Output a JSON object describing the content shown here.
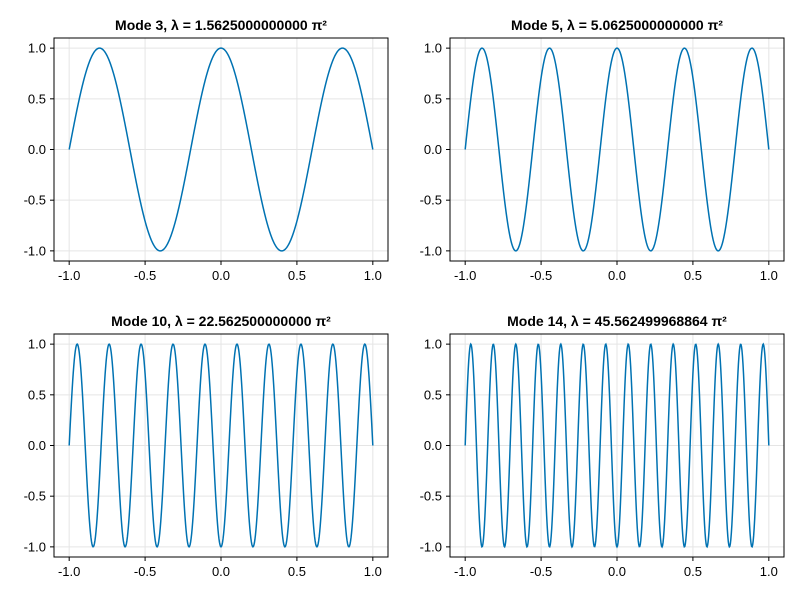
{
  "colors": {
    "line": "#0072b2",
    "grid": "#e5e5e5",
    "frame": "#000000",
    "background": "#ffffff"
  },
  "chart_data": [
    {
      "type": "line",
      "title": "Mode 3, λ = 1.5625000000000 π²",
      "function": "sin(2.5π(x+1))",
      "x_range": [
        -1.0,
        1.0
      ],
      "xlim": [
        -1.1,
        1.1
      ],
      "ylim": [
        -1.1,
        1.1
      ],
      "xticks": [
        "-1.0",
        "-0.5",
        "0.0",
        "0.5",
        "1.0"
      ],
      "yticks": [
        "-1.0",
        "-0.5",
        "0.0",
        "0.5",
        "1.0"
      ],
      "xtick_values": [
        -1.0,
        -0.5,
        0.0,
        0.5,
        1.0
      ],
      "ytick_values": [
        -1.0,
        -0.5,
        0.0,
        0.5,
        1.0
      ],
      "grid": true,
      "wave_number": 2.5
    },
    {
      "type": "line",
      "title": "Mode 5, λ = 5.0625000000000 π²",
      "function": "sin(4.5π(x+1))",
      "x_range": [
        -1.0,
        1.0
      ],
      "xlim": [
        -1.1,
        1.1
      ],
      "ylim": [
        -1.1,
        1.1
      ],
      "xticks": [
        "-1.0",
        "-0.5",
        "0.0",
        "0.5",
        "1.0"
      ],
      "yticks": [
        "-1.0",
        "-0.5",
        "0.0",
        "0.5",
        "1.0"
      ],
      "xtick_values": [
        -1.0,
        -0.5,
        0.0,
        0.5,
        1.0
      ],
      "ytick_values": [
        -1.0,
        -0.5,
        0.0,
        0.5,
        1.0
      ],
      "grid": true,
      "wave_number": 4.5
    },
    {
      "type": "line",
      "title": "Mode 10, λ = 22.562500000000 π²",
      "function": "sin(9.5π(x+1))",
      "x_range": [
        -1.0,
        1.0
      ],
      "xlim": [
        -1.1,
        1.1
      ],
      "ylim": [
        -1.1,
        1.1
      ],
      "xticks": [
        "-1.0",
        "-0.5",
        "0.0",
        "0.5",
        "1.0"
      ],
      "yticks": [
        "-1.0",
        "-0.5",
        "0.0",
        "0.5",
        "1.0"
      ],
      "xtick_values": [
        -1.0,
        -0.5,
        0.0,
        0.5,
        1.0
      ],
      "ytick_values": [
        -1.0,
        -0.5,
        0.0,
        0.5,
        1.0
      ],
      "grid": true,
      "wave_number": 9.5
    },
    {
      "type": "line",
      "title": "Mode 14, λ = 45.562499968864 π²",
      "function": "sin(13.5π(x+1))",
      "x_range": [
        -1.0,
        1.0
      ],
      "xlim": [
        -1.1,
        1.1
      ],
      "ylim": [
        -1.1,
        1.1
      ],
      "xticks": [
        "-1.0",
        "-0.5",
        "0.0",
        "0.5",
        "1.0"
      ],
      "yticks": [
        "-1.0",
        "-0.5",
        "0.0",
        "0.5",
        "1.0"
      ],
      "xtick_values": [
        -1.0,
        -0.5,
        0.0,
        0.5,
        1.0
      ],
      "ytick_values": [
        -1.0,
        -0.5,
        0.0,
        0.5,
        1.0
      ],
      "grid": true,
      "wave_number": 13.5
    }
  ]
}
